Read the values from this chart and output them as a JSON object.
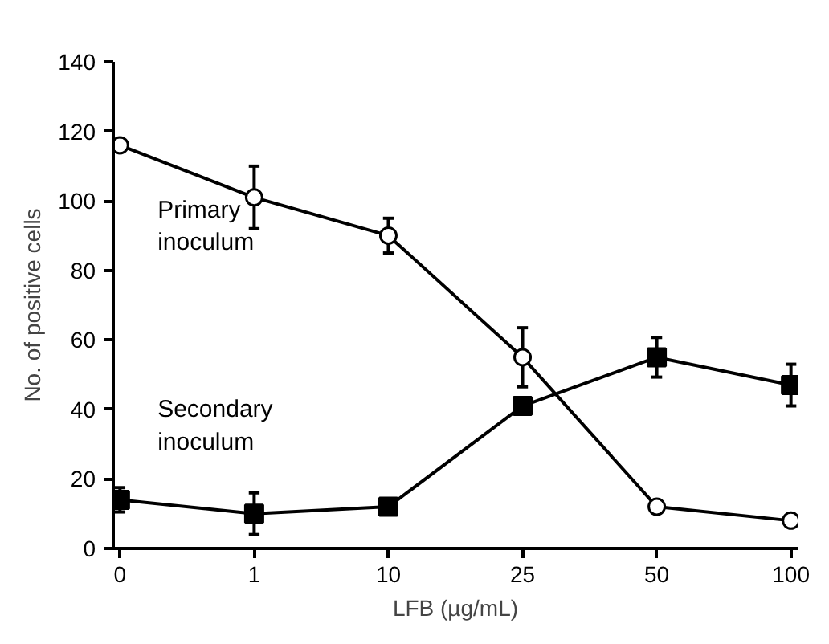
{
  "chart_data": {
    "type": "line",
    "xlabel": "LFB (µg/mL)",
    "ylabel": "No. of positive cells",
    "categories": [
      "0",
      "1",
      "10",
      "25",
      "50",
      "100"
    ],
    "series": [
      {
        "name": "Primary inoculum",
        "color": "#000000",
        "marker": "circle",
        "values": [
          116,
          101,
          90,
          55,
          12,
          8
        ],
        "errors": [
          null,
          9,
          5,
          8.5,
          null,
          null
        ]
      },
      {
        "name": "Secondary inoculum",
        "color": "#000000",
        "marker": "square",
        "values": [
          14,
          10,
          12,
          41,
          55,
          47
        ],
        "errors": [
          3.5,
          6,
          null,
          null,
          5.7,
          6
        ]
      }
    ],
    "ylim": [
      0,
      140
    ],
    "yticks": [
      0,
      20,
      40,
      60,
      80,
      100,
      120,
      140
    ],
    "grid": false,
    "legend": false,
    "line_style": "solid"
  }
}
